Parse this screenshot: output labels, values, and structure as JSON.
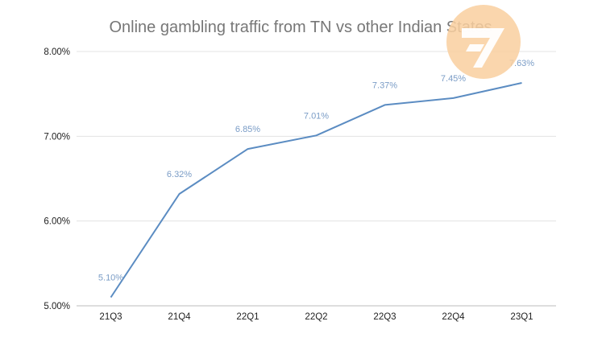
{
  "colors": {
    "line": "#5b8cc2",
    "data_label": "#7a9cc6",
    "logo_circle": "#f9cf9f",
    "logo_mark": "#ffffff"
  },
  "logo": {
    "icon": "seven-arrow-logo-icon"
  },
  "chart_data": {
    "type": "line",
    "title": "Online gambling traffic from TN vs other Indian States",
    "categories": [
      "21Q3",
      "21Q4",
      "22Q1",
      "22Q2",
      "22Q3",
      "22Q4",
      "23Q1"
    ],
    "values": [
      5.1,
      6.32,
      6.85,
      7.01,
      7.37,
      7.45,
      7.63
    ],
    "data_labels": [
      "5.10%",
      "6.32%",
      "6.85%",
      "7.01%",
      "7.37%",
      "7.45%",
      "7.63%"
    ],
    "y_ticks": [
      5.0,
      6.0,
      7.0,
      8.0
    ],
    "y_tick_labels": [
      "5.00%",
      "6.00%",
      "7.00%",
      "8.00%"
    ],
    "ylim": [
      5.0,
      8.0
    ],
    "grid": true,
    "legend": "none"
  }
}
